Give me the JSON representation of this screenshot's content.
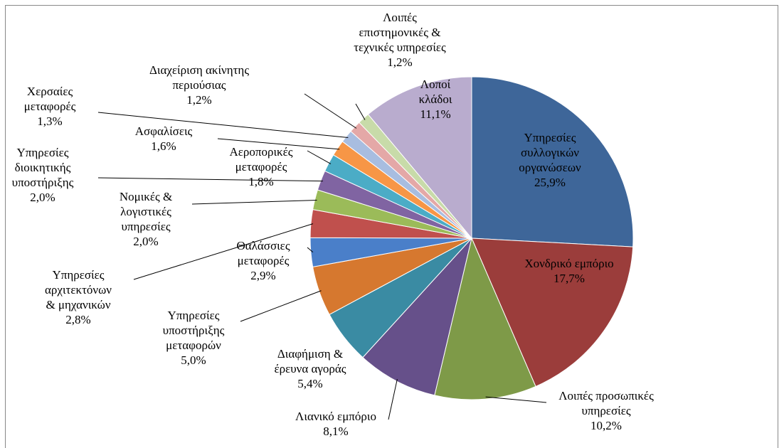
{
  "chart_data": {
    "type": "pie",
    "categories": [
      "Υπηρεσίες\nσυλλογικών\nοργανώσεων",
      "Χονδρικό εμπόριο",
      "Λοιπές προσωπικές\nυπηρεσίες",
      "Λιανικό εμπόριο",
      "Διαφήμιση &\nέρευνα αγοράς",
      "Υπηρεσίες\nυποστήριξης\nμεταφορών",
      "Θαλάσσιες\nμεταφορές",
      "Υπηρεσίες\nαρχιτεκτόνων\n& μηχανικών",
      "Νομικές &\nλογιστικές\nυπηρεσίες",
      "Υπηρεσίες\nδιοικητικής\nυποστήριξης",
      "Αεροπορικές\nμεταφορές",
      "Ασφαλίσεις",
      "Χερσαίες\nμεταφορές",
      "Διαχείριση ακίνητης\nπεριούσιας",
      "Λοιπές\nεπιστημονικές &\nτεχνικές υπηρεσίες",
      "Λοποί\nκλάδοι"
    ],
    "values": [
      25.9,
      17.7,
      10.2,
      8.1,
      5.4,
      5.0,
      2.9,
      2.8,
      2.0,
      2.0,
      1.8,
      1.6,
      1.3,
      1.2,
      1.2,
      11.1
    ],
    "value_labels": [
      "25,9%",
      "17,7%",
      "10,2%",
      "8,1%",
      "5,4%",
      "5,0%",
      "2,9%",
      "2,8%",
      "2,0%",
      "2,0%",
      "1,8%",
      "1,6%",
      "1,3%",
      "1,2%",
      "1,2%",
      "11,1%"
    ],
    "colors": [
      "#3e6699",
      "#9b3d3b",
      "#7e9a48",
      "#66508a",
      "#3a8ba3",
      "#d6782f",
      "#4a7fc9",
      "#c0504d",
      "#9bbb59",
      "#8064a2",
      "#4bacc6",
      "#f79646",
      "#a8bde0",
      "#e4a8a7",
      "#c8dba9",
      "#b9acce"
    ]
  }
}
